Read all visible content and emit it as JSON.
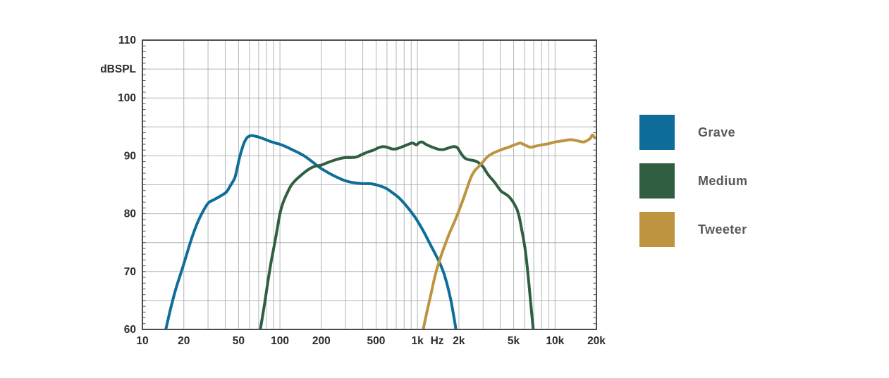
{
  "chart_data": {
    "type": "line",
    "title": "",
    "x_scale": "log",
    "xlim": [
      10,
      20000
    ],
    "ylim": [
      60,
      110
    ],
    "grid": "on",
    "y_gridline_step": 5,
    "y_label_step": 10,
    "y_minor_tick_step": 1,
    "colors": {
      "grid": "#b4b6b8",
      "border": "#4c4d4f",
      "tick_text": "#2b2b2c",
      "background": "#ffffff"
    },
    "x_ticks": [
      {
        "f": 10,
        "label": "10"
      },
      {
        "f": 20,
        "label": "20"
      },
      {
        "f": 50,
        "label": "50"
      },
      {
        "f": 100,
        "label": "100"
      },
      {
        "f": 200,
        "label": "200"
      },
      {
        "f": 500,
        "label": "500"
      },
      {
        "f": 1000,
        "label": "1k"
      },
      {
        "f": 2000,
        "label": "2k"
      },
      {
        "f": 5000,
        "label": "5k"
      },
      {
        "f": 10000,
        "label": "10k"
      },
      {
        "f": 20000,
        "label": "20k"
      }
    ],
    "y_ticks": [
      {
        "db": 110,
        "label": "110"
      },
      {
        "db": 100,
        "label": "100"
      },
      {
        "db": 90,
        "label": "90"
      },
      {
        "db": 80,
        "label": "80"
      },
      {
        "db": 70,
        "label": "70"
      },
      {
        "db": 60,
        "label": "60"
      }
    ],
    "unit_labels": {
      "y": {
        "text": "dBSPL",
        "at_db": 105
      },
      "x": {
        "text": "Hz",
        "at_hz": 1390
      }
    },
    "series": [
      {
        "name": "Grave",
        "color": "#0F6E99",
        "points": [
          [
            14.8,
            60
          ],
          [
            16,
            63.5
          ],
          [
            17.5,
            67
          ],
          [
            19.5,
            70.5
          ],
          [
            21,
            73
          ],
          [
            23,
            76
          ],
          [
            25,
            78.3
          ],
          [
            27,
            80
          ],
          [
            30,
            81.8
          ],
          [
            33,
            82.4
          ],
          [
            36,
            82.9
          ],
          [
            39,
            83.4
          ],
          [
            41,
            83.8
          ],
          [
            44,
            85
          ],
          [
            47,
            86.2
          ],
          [
            49,
            88
          ],
          [
            51,
            89.8
          ],
          [
            53,
            91.2
          ],
          [
            55,
            92.3
          ],
          [
            58,
            93.2
          ],
          [
            62,
            93.5
          ],
          [
            66,
            93.4
          ],
          [
            71,
            93.2
          ],
          [
            77,
            92.9
          ],
          [
            85,
            92.5
          ],
          [
            93,
            92.2
          ],
          [
            100,
            92
          ],
          [
            110,
            91.6
          ],
          [
            122,
            91.1
          ],
          [
            135,
            90.6
          ],
          [
            150,
            90
          ],
          [
            165,
            89.3
          ],
          [
            180,
            88.6
          ],
          [
            200,
            87.8
          ],
          [
            220,
            87.2
          ],
          [
            240,
            86.7
          ],
          [
            265,
            86.2
          ],
          [
            290,
            85.8
          ],
          [
            320,
            85.5
          ],
          [
            360,
            85.3
          ],
          [
            400,
            85.2
          ],
          [
            450,
            85.2
          ],
          [
            500,
            85
          ],
          [
            550,
            84.7
          ],
          [
            600,
            84.3
          ],
          [
            660,
            83.6
          ],
          [
            730,
            82.8
          ],
          [
            800,
            81.8
          ],
          [
            880,
            80.6
          ],
          [
            960,
            79.4
          ],
          [
            1050,
            77.9
          ],
          [
            1150,
            76.2
          ],
          [
            1250,
            74.5
          ],
          [
            1350,
            73
          ],
          [
            1450,
            71.5
          ],
          [
            1550,
            69.8
          ],
          [
            1650,
            67.6
          ],
          [
            1750,
            65
          ],
          [
            1820,
            62.8
          ],
          [
            1880,
            60.8
          ],
          [
            1900,
            60
          ]
        ]
      },
      {
        "name": "Medium",
        "color": "#2F5F40",
        "points": [
          [
            72,
            60
          ],
          [
            75,
            62.5
          ],
          [
            78,
            65
          ],
          [
            82,
            68.5
          ],
          [
            86,
            71.5
          ],
          [
            90,
            74
          ],
          [
            95,
            77
          ],
          [
            100,
            80
          ],
          [
            105,
            81.8
          ],
          [
            110,
            83
          ],
          [
            120,
            84.8
          ],
          [
            130,
            85.8
          ],
          [
            140,
            86.5
          ],
          [
            152,
            87.2
          ],
          [
            165,
            87.8
          ],
          [
            180,
            88.2
          ],
          [
            200,
            88.4
          ],
          [
            220,
            88.8
          ],
          [
            245,
            89.2
          ],
          [
            270,
            89.5
          ],
          [
            300,
            89.7
          ],
          [
            330,
            89.7
          ],
          [
            360,
            89.8
          ],
          [
            400,
            90.3
          ],
          [
            440,
            90.7
          ],
          [
            480,
            91
          ],
          [
            520,
            91.4
          ],
          [
            560,
            91.6
          ],
          [
            600,
            91.5
          ],
          [
            650,
            91.2
          ],
          [
            700,
            91.2
          ],
          [
            760,
            91.5
          ],
          [
            820,
            91.8
          ],
          [
            880,
            92.1
          ],
          [
            930,
            92.2
          ],
          [
            980,
            91.9
          ],
          [
            1030,
            92.3
          ],
          [
            1080,
            92.4
          ],
          [
            1150,
            92
          ],
          [
            1250,
            91.6
          ],
          [
            1350,
            91.3
          ],
          [
            1450,
            91.1
          ],
          [
            1550,
            91.1
          ],
          [
            1650,
            91.3
          ],
          [
            1750,
            91.5
          ],
          [
            1850,
            91.6
          ],
          [
            1950,
            91.4
          ],
          [
            2050,
            90.6
          ],
          [
            2150,
            89.9
          ],
          [
            2250,
            89.5
          ],
          [
            2400,
            89.3
          ],
          [
            2550,
            89.2
          ],
          [
            2700,
            89
          ],
          [
            2850,
            88.6
          ],
          [
            3000,
            88.1
          ],
          [
            3150,
            87.3
          ],
          [
            3300,
            86.6
          ],
          [
            3500,
            85.9
          ],
          [
            3700,
            85.2
          ],
          [
            3900,
            84.4
          ],
          [
            4100,
            83.8
          ],
          [
            4300,
            83.5
          ],
          [
            4600,
            83
          ],
          [
            4900,
            82.2
          ],
          [
            5100,
            81.5
          ],
          [
            5300,
            80.7
          ],
          [
            5500,
            79.4
          ],
          [
            5700,
            77.5
          ],
          [
            5900,
            75.6
          ],
          [
            6100,
            73.4
          ],
          [
            6300,
            70.5
          ],
          [
            6500,
            67.2
          ],
          [
            6700,
            63.9
          ],
          [
            6850,
            61.5
          ],
          [
            6950,
            60
          ]
        ]
      },
      {
        "name": "Tweeter",
        "color": "#BD9440",
        "points": [
          [
            1100,
            60
          ],
          [
            1170,
            63
          ],
          [
            1250,
            66
          ],
          [
            1350,
            69.5
          ],
          [
            1450,
            72
          ],
          [
            1550,
            74
          ],
          [
            1700,
            76.5
          ],
          [
            1850,
            78.5
          ],
          [
            2000,
            80.5
          ],
          [
            2150,
            82.5
          ],
          [
            2300,
            84.5
          ],
          [
            2450,
            86.3
          ],
          [
            2600,
            87.4
          ],
          [
            2800,
            88.2
          ],
          [
            3000,
            89
          ],
          [
            3250,
            89.9
          ],
          [
            3500,
            90.4
          ],
          [
            4000,
            91
          ],
          [
            4600,
            91.5
          ],
          [
            5200,
            92
          ],
          [
            5600,
            92.2
          ],
          [
            6000,
            91.9
          ],
          [
            6600,
            91.5
          ],
          [
            7000,
            91.6
          ],
          [
            8000,
            91.9
          ],
          [
            9000,
            92.1
          ],
          [
            10000,
            92.4
          ],
          [
            11500,
            92.6
          ],
          [
            13000,
            92.8
          ],
          [
            14500,
            92.6
          ],
          [
            16000,
            92.4
          ],
          [
            17000,
            92.6
          ],
          [
            18000,
            93
          ],
          [
            18700,
            93.6
          ],
          [
            19300,
            93.2
          ],
          [
            20000,
            93.1
          ]
        ]
      }
    ],
    "legend": {
      "position": "right",
      "label_color": "#57585b",
      "items": [
        {
          "label": "Grave",
          "color": "#0F6E99"
        },
        {
          "label": "Medium",
          "color": "#2F5F40"
        },
        {
          "label": "Tweeter",
          "color": "#BD9440"
        }
      ]
    }
  }
}
